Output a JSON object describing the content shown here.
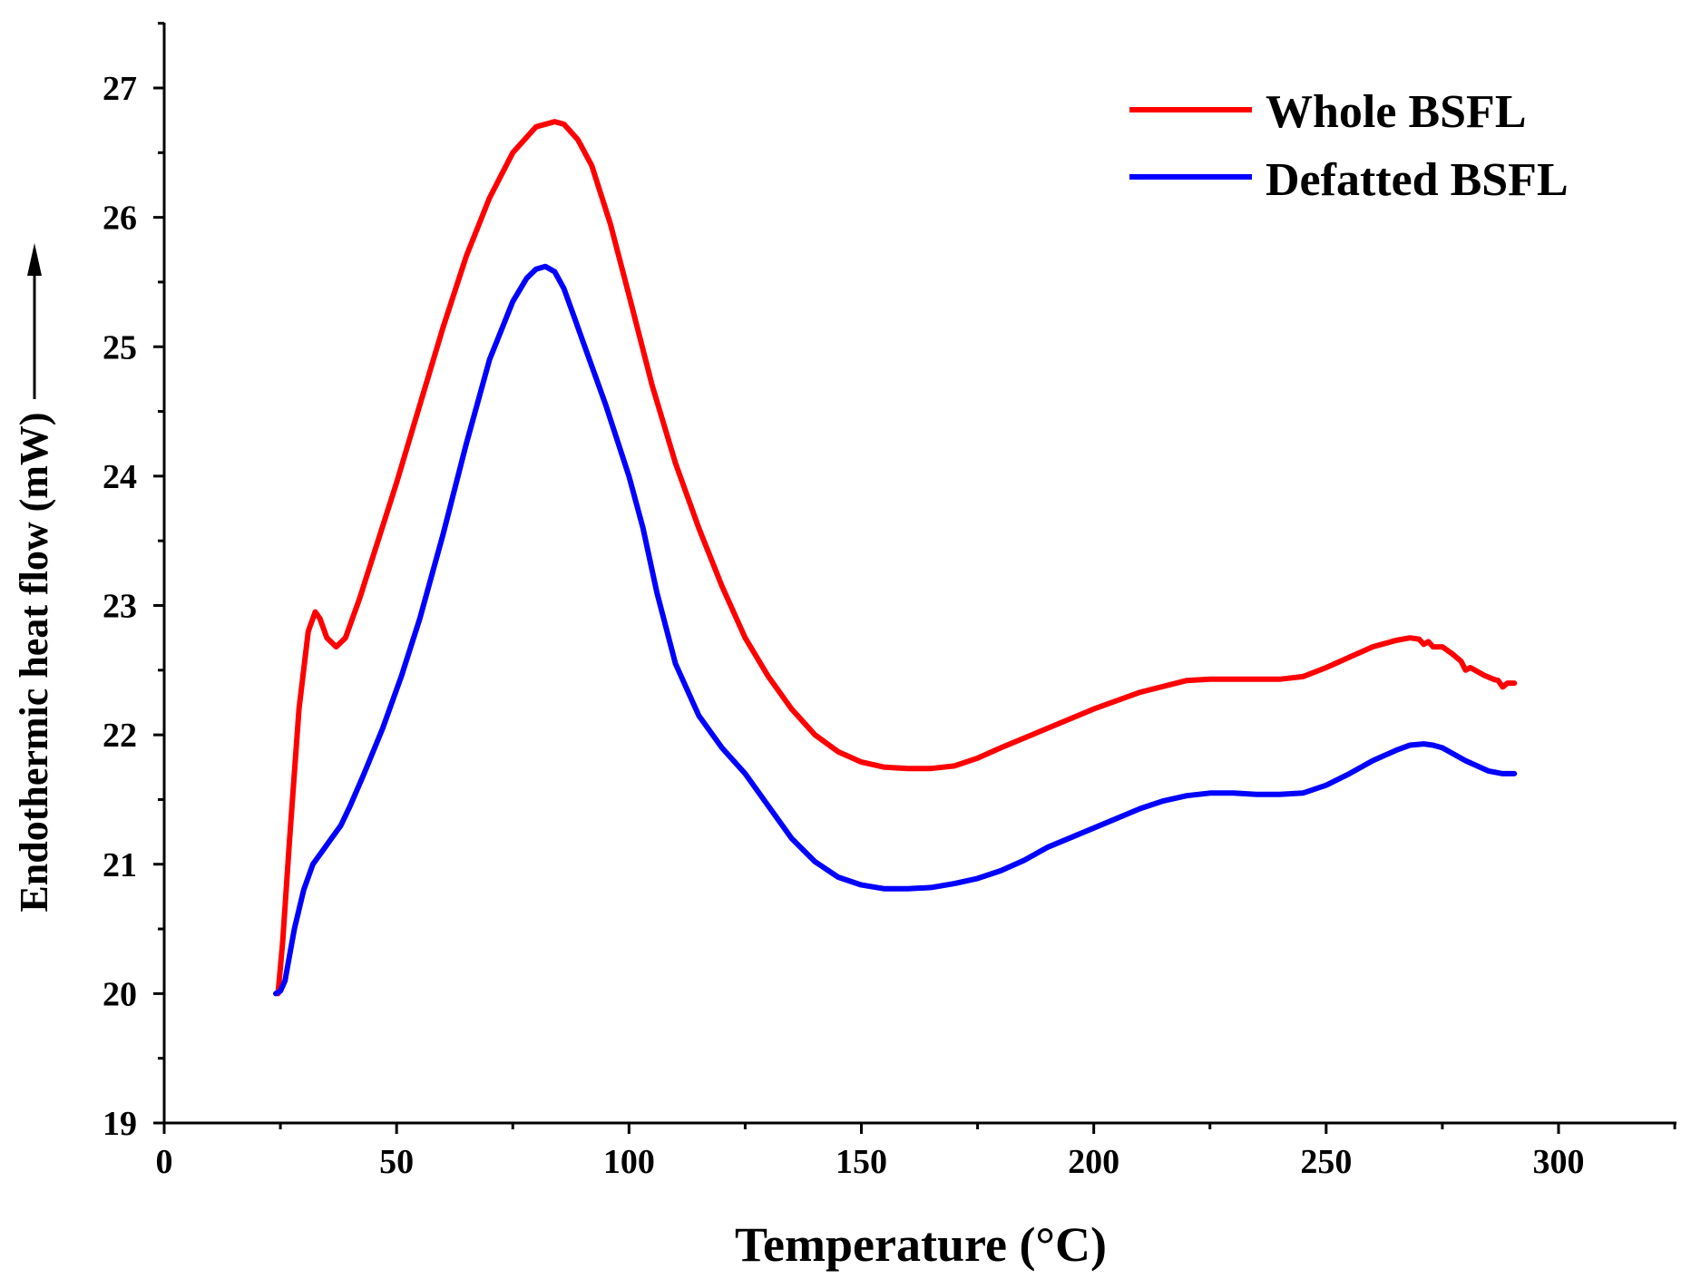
{
  "chart_data": {
    "type": "line",
    "title": "",
    "xlabel": "Temperature (°C)",
    "ylabel": "Endothermic heat flow (mW)",
    "xlim": [
      0,
      325
    ],
    "ylim": [
      19,
      27.5
    ],
    "xticks": [
      0,
      50,
      100,
      150,
      200,
      250,
      300
    ],
    "xtick_labels": [
      "0",
      "50",
      "100",
      "150",
      "200",
      "250",
      "300"
    ],
    "yticks": [
      19,
      20,
      21,
      22,
      23,
      24,
      25,
      26,
      27
    ],
    "ytick_labels": [
      "19",
      "20",
      "21",
      "22",
      "23",
      "24",
      "25",
      "26",
      "27"
    ],
    "grid": false,
    "legend_position": "top-right",
    "annotations": [
      "upward arrow next to y-axis title indicating endothermic direction"
    ],
    "series": [
      {
        "name": "Whole BSFL",
        "color": "#ff0000",
        "x": [
          24.5,
          25.5,
          27,
          29,
          31,
          32.5,
          33.5,
          35,
          37,
          39,
          42,
          46,
          50,
          55,
          60,
          65,
          70,
          75,
          80,
          84,
          86,
          89,
          92,
          96,
          100,
          105,
          110,
          115,
          120,
          125,
          130,
          135,
          140,
          145,
          150,
          155,
          160,
          165,
          170,
          175,
          180,
          190,
          200,
          210,
          220,
          225,
          230,
          240,
          245,
          250,
          255,
          260,
          265,
          268,
          270,
          271,
          272,
          273,
          275,
          277,
          279,
          280,
          281,
          282,
          284,
          286,
          287,
          288,
          289,
          290.5
        ],
        "y": [
          20.0,
          20.4,
          21.2,
          22.2,
          22.8,
          22.95,
          22.9,
          22.75,
          22.68,
          22.75,
          23.05,
          23.5,
          23.95,
          24.55,
          25.15,
          25.7,
          26.15,
          26.5,
          26.7,
          26.74,
          26.72,
          26.6,
          26.4,
          25.95,
          25.4,
          24.7,
          24.1,
          23.6,
          23.15,
          22.75,
          22.45,
          22.2,
          22.0,
          21.87,
          21.79,
          21.75,
          21.74,
          21.74,
          21.76,
          21.82,
          21.9,
          22.05,
          22.2,
          22.33,
          22.42,
          22.43,
          22.43,
          22.43,
          22.45,
          22.52,
          22.6,
          22.68,
          22.73,
          22.75,
          22.74,
          22.7,
          22.72,
          22.68,
          22.68,
          22.63,
          22.57,
          22.5,
          22.52,
          22.5,
          22.46,
          22.43,
          22.42,
          22.37,
          22.4,
          22.4
        ]
      },
      {
        "name": "Defatted BSFL",
        "color": "#0000ff",
        "x": [
          24,
          25,
          26,
          27,
          28,
          30,
          32,
          34,
          36,
          38,
          40,
          43,
          47,
          51,
          55,
          60,
          65,
          70,
          75,
          78,
          80,
          82,
          84,
          86,
          88,
          91,
          95,
          100,
          103,
          106,
          110,
          115,
          120,
          125,
          130,
          135,
          140,
          145,
          150,
          155,
          160,
          165,
          170,
          175,
          180,
          185,
          190,
          200,
          210,
          215,
          220,
          225,
          230,
          235,
          240,
          245,
          250,
          255,
          260,
          265,
          268,
          271,
          273,
          275,
          280,
          285,
          288,
          290.5
        ],
        "y": [
          20.0,
          20.02,
          20.1,
          20.3,
          20.5,
          20.8,
          21.0,
          21.1,
          21.2,
          21.3,
          21.45,
          21.7,
          22.05,
          22.45,
          22.9,
          23.55,
          24.25,
          24.9,
          25.35,
          25.53,
          25.6,
          25.62,
          25.58,
          25.45,
          25.25,
          24.95,
          24.55,
          24.0,
          23.6,
          23.1,
          22.55,
          22.15,
          21.9,
          21.7,
          21.45,
          21.2,
          21.02,
          20.9,
          20.84,
          20.81,
          20.81,
          20.82,
          20.85,
          20.89,
          20.95,
          21.03,
          21.13,
          21.28,
          21.43,
          21.49,
          21.53,
          21.55,
          21.55,
          21.54,
          21.54,
          21.55,
          21.61,
          21.7,
          21.8,
          21.88,
          21.92,
          21.93,
          21.92,
          21.9,
          21.8,
          21.72,
          21.7,
          21.7
        ]
      }
    ]
  }
}
